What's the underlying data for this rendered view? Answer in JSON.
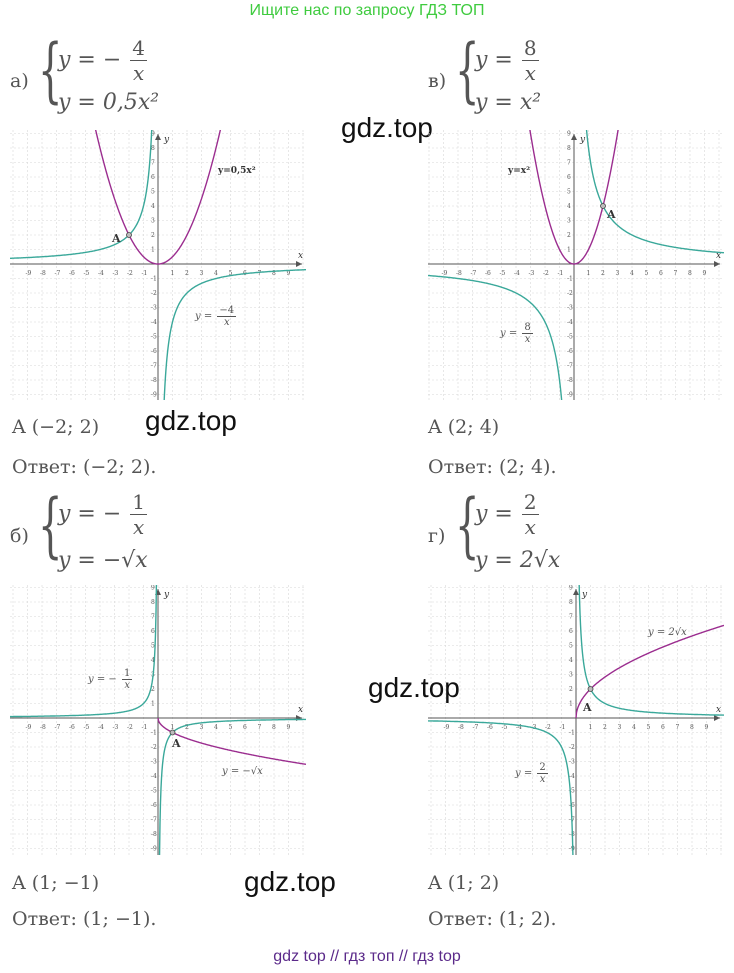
{
  "banner": "Ищите нас по запросу ГДЗ ТОП",
  "watermark": "gdz.top",
  "footer": "gdz top  //  гдз топ  //  гдз top",
  "colors": {
    "banner": "#3fcb3f",
    "footer": "#5b2a8a",
    "teal": "#3aa89a",
    "purple": "#9b2d8f",
    "grid": "#d8d8d8"
  },
  "problems": {
    "a": {
      "label": "а)",
      "eq1": "y = −",
      "eq1_num": "4",
      "eq1_den": "x",
      "eq2": "y = 0,5x²",
      "point_label": "A",
      "curve_label_1": "y=0,5x²",
      "curve_label_2_prefix": "y =",
      "curve_label_2_num": "−4",
      "curve_label_2_den": "x",
      "point": "A (−2; 2)",
      "answer_prefix": "Ответ:",
      "answer": "(−2; 2)."
    },
    "v": {
      "label": "в)",
      "eq1": "y =",
      "eq1_num": "8",
      "eq1_den": "x",
      "eq2": "y = x²",
      "point_label": "A",
      "curve_label_1": "y=x²",
      "curve_label_2_prefix": "y =",
      "curve_label_2_num": "8",
      "curve_label_2_den": "x",
      "point": "A (2; 4)",
      "answer_prefix": "Ответ:",
      "answer": "(2; 4)."
    },
    "b": {
      "label": "б)",
      "eq1": "y = −",
      "eq1_num": "1",
      "eq1_den": "x",
      "eq2": "y = −√x",
      "point_label": "A",
      "curve_label_1_prefix": "y = −",
      "curve_label_1_num": "1",
      "curve_label_1_den": "x",
      "curve_label_2": "y = −√x",
      "point": "A (1;  −1)",
      "answer_prefix": "Ответ:",
      "answer": "(1;  −1)."
    },
    "g": {
      "label": "г)",
      "eq1": "y =",
      "eq1_num": "2",
      "eq1_den": "x",
      "eq2": "y = 2√x",
      "point_label": "A",
      "curve_label_1": "y = 2√x",
      "curve_label_2_prefix": "y =",
      "curve_label_2_num": "2",
      "curve_label_2_den": "x",
      "point": "A (1; 2)",
      "answer_prefix": "Ответ:",
      "answer": "(1; 2)."
    }
  },
  "axes": {
    "x": "x",
    "y": "y",
    "ticks": [
      "-9",
      "-8",
      "-7",
      "-6",
      "-5",
      "-4",
      "-3",
      "-2",
      "-1",
      "1",
      "2",
      "3",
      "4",
      "5",
      "6",
      "7",
      "8",
      "9"
    ]
  }
}
